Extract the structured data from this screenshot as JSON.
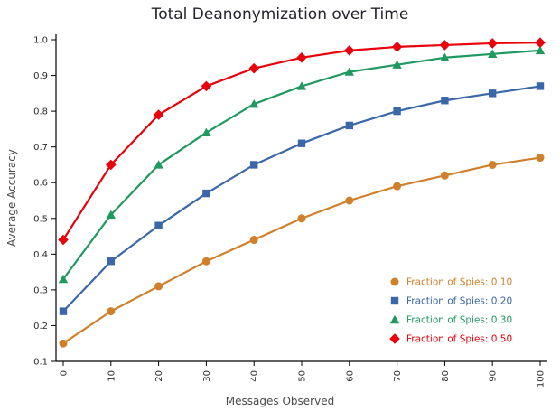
{
  "chart_data": {
    "type": "line",
    "title": "Total Deanonymization over Time",
    "xlabel": "Messages Observed",
    "ylabel": "Average Accuracy",
    "x": [
      0,
      10,
      20,
      30,
      40,
      50,
      60,
      70,
      80,
      90,
      100
    ],
    "x_tick_labels": [
      "0",
      "10",
      "20",
      "30",
      "40",
      "50",
      "60",
      "70",
      "80",
      "90",
      "100"
    ],
    "y_ticks": [
      0.1,
      0.2,
      0.3,
      0.4,
      0.5,
      0.6,
      0.7,
      0.8,
      0.9,
      1.0
    ],
    "ylim": [
      0.1,
      1.0
    ],
    "grid": false,
    "legend_position": "lower right",
    "series": [
      {
        "name": "Fraction of Spies: 0.10",
        "marker": "circle",
        "color": "#d0802b",
        "values": [
          0.15,
          0.24,
          0.31,
          0.38,
          0.44,
          0.5,
          0.55,
          0.59,
          0.62,
          0.65,
          0.67
        ]
      },
      {
        "name": "Fraction of Spies: 0.20",
        "marker": "square",
        "color": "#3a67a8",
        "values": [
          0.24,
          0.38,
          0.48,
          0.57,
          0.65,
          0.71,
          0.76,
          0.8,
          0.83,
          0.85,
          0.87
        ]
      },
      {
        "name": "Fraction of Spies: 0.30",
        "marker": "triangle",
        "color": "#1f9960",
        "values": [
          0.33,
          0.51,
          0.65,
          0.74,
          0.82,
          0.87,
          0.91,
          0.93,
          0.95,
          0.96,
          0.97
        ]
      },
      {
        "name": "Fraction of Spies: 0.50",
        "marker": "diamond",
        "color": "#e8000b",
        "values": [
          0.44,
          0.65,
          0.79,
          0.87,
          0.92,
          0.95,
          0.97,
          0.98,
          0.985,
          0.99,
          0.992
        ]
      }
    ]
  }
}
